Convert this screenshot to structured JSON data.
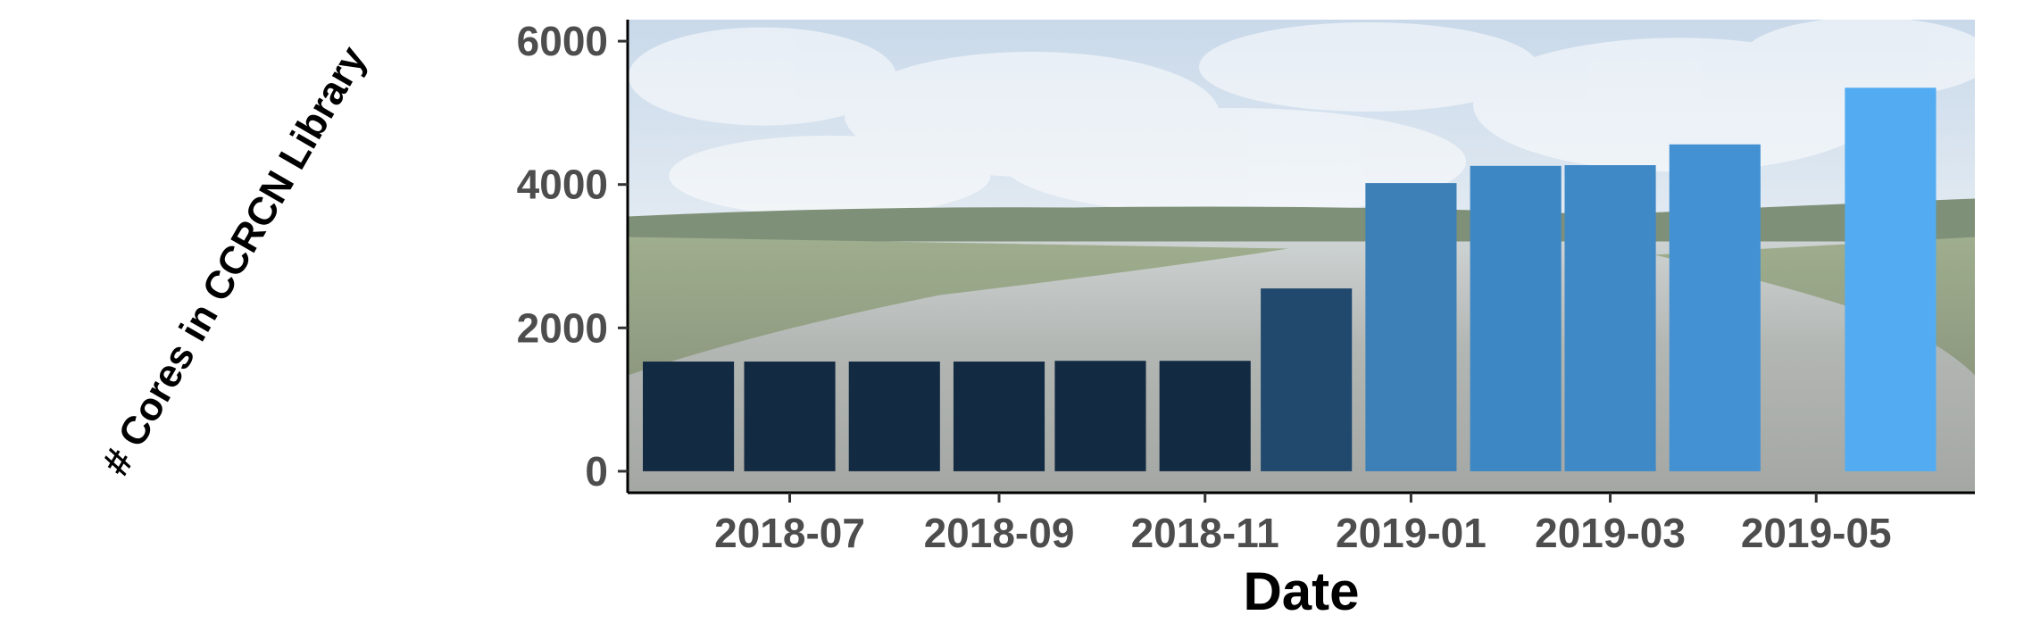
{
  "chart_data": {
    "type": "bar",
    "title": "",
    "xlabel": "Date",
    "ylabel": "# Cores in CCRCN Library",
    "x_tick_labels": [
      "2018-07",
      "2018-09",
      "2018-11",
      "2019-01",
      "2019-03",
      "2019-05"
    ],
    "x_tick_dates": [
      "2018-07-01",
      "2018-09-01",
      "2018-11-01",
      "2019-01-01",
      "2019-03-01",
      "2019-05-01"
    ],
    "x_range": [
      "2018-05-14",
      "2019-06-17"
    ],
    "y_ticks": [
      0,
      2000,
      4000,
      6000
    ],
    "ylim": [
      -300,
      6300
    ],
    "grid": false,
    "legend": "none",
    "background": "photo of a tidal marsh with a river under a cloudy sky",
    "bars": [
      {
        "date": "2018-06-01",
        "value": 1530,
        "color": "#132a43"
      },
      {
        "date": "2018-07-01",
        "value": 1530,
        "color": "#132a43"
      },
      {
        "date": "2018-08-01",
        "value": 1530,
        "color": "#132a43"
      },
      {
        "date": "2018-09-01",
        "value": 1530,
        "color": "#132a43"
      },
      {
        "date": "2018-10-01",
        "value": 1540,
        "color": "#132a43"
      },
      {
        "date": "2018-11-01",
        "value": 1540,
        "color": "#132a43"
      },
      {
        "date": "2018-12-01",
        "value": 2550,
        "color": "#21486d"
      },
      {
        "date": "2019-01-01",
        "value": 4020,
        "color": "#3d80b8"
      },
      {
        "date": "2019-02-01",
        "value": 4260,
        "color": "#3d87c4"
      },
      {
        "date": "2019-03-01",
        "value": 4270,
        "color": "#3f89c7"
      },
      {
        "date": "2019-04-01",
        "value": 4560,
        "color": "#4391d2"
      },
      {
        "date": "2019-05-23",
        "value": 5350,
        "color": "#53acf2"
      }
    ]
  }
}
